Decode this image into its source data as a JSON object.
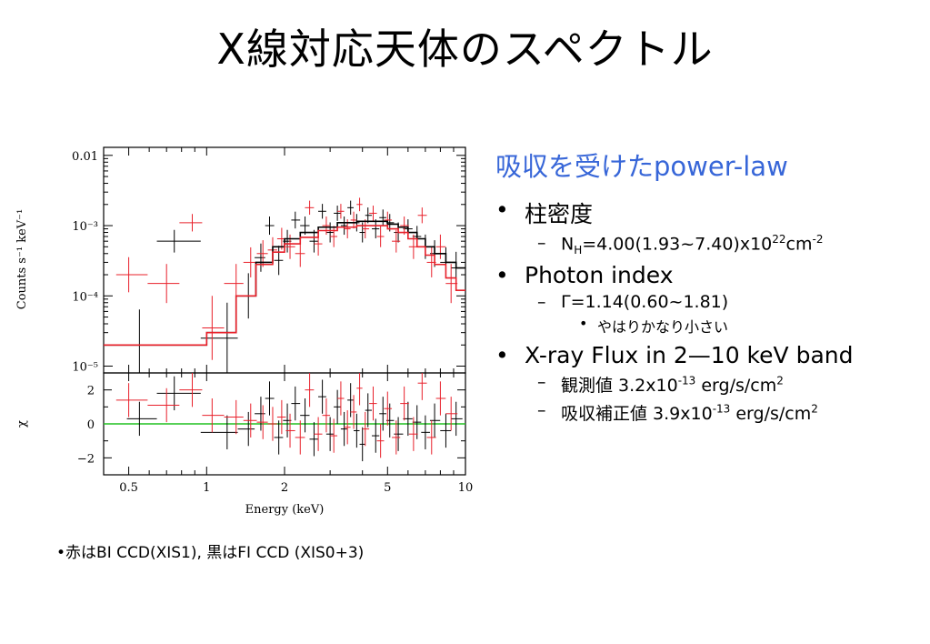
{
  "title": "X線対応天体のスペクトル",
  "right": {
    "heading": "吸収を受けたpower-law",
    "bullet": "•",
    "dash": "–",
    "item1": "柱密度",
    "nh": {
      "pre": "N",
      "sub": "H",
      "mid": "=4.00(1.93~7.40)x10",
      "sup": "22",
      "unit": "cm",
      "unit_sup": "-2"
    },
    "item2": "Photon index",
    "gamma": "Γ=1.14(0.60~1.81)",
    "gamma_note": "やはりかなり小さい",
    "item3": "X-ray Flux in 2—10 keV band",
    "obs": {
      "pre": "観測値 3.2x10",
      "sup": "-13",
      "post": " erg/s/cm",
      "post_sup": "2"
    },
    "corr": {
      "pre": "吸収補正値 3.9x10",
      "sup": "-13",
      "post": " erg/s/cm",
      "post_sup": "2"
    }
  },
  "note": "•赤はBI CCD(XIS1), 黒はFI CCD (XIS0+3)",
  "chart_data": {
    "type": "scatter",
    "xlabel": "Energy (keV)",
    "x_scale": "log",
    "xlim": [
      0.4,
      10
    ],
    "x_ticks": [
      "0.5",
      "1",
      "2",
      "5",
      "10"
    ],
    "colors": {
      "BI": "#e8202a",
      "FI": "#000000",
      "zero_line": "#20c020"
    },
    "panels": [
      {
        "name": "spectrum",
        "ylabel": "Counts s⁻¹ keV⁻¹",
        "y_scale": "log",
        "ylim": [
          8e-06,
          0.013
        ],
        "y_ticks": [
          "0.01",
          "10⁻³",
          "10⁻⁴",
          "10⁻⁵"
        ],
        "series": [
          {
            "key": "FI",
            "points": [
              [
                0.55,
                2e-05
              ],
              [
                0.75,
                0.0006
              ],
              [
                1.2,
                2.5e-05
              ],
              [
                1.45,
                0.0001
              ],
              [
                1.62,
                0.00035
              ],
              [
                1.75,
                0.001
              ],
              [
                1.9,
                0.00032
              ],
              [
                2.05,
                0.0006
              ],
              [
                2.2,
                0.0012
              ],
              [
                2.4,
                0.001
              ],
              [
                2.6,
                0.0006
              ],
              [
                2.8,
                0.0016
              ],
              [
                3.0,
                0.0008
              ],
              [
                3.2,
                0.0015
              ],
              [
                3.4,
                0.001
              ],
              [
                3.6,
                0.0018
              ],
              [
                3.8,
                0.0011
              ],
              [
                4.0,
                0.0008
              ],
              [
                4.2,
                0.0014
              ],
              [
                4.5,
                0.0009
              ],
              [
                4.8,
                0.0013
              ],
              [
                5.1,
                0.0011
              ],
              [
                5.5,
                0.0008
              ],
              [
                6.0,
                0.0009
              ],
              [
                6.5,
                0.0007
              ],
              [
                7.0,
                0.0005
              ],
              [
                7.6,
                0.0004
              ],
              [
                8.4,
                0.0003
              ],
              [
                9.2,
                0.00025
              ]
            ]
          },
          {
            "key": "BI",
            "points": [
              [
                0.5,
                0.0002
              ],
              [
                0.7,
                0.00015
              ],
              [
                0.88,
                0.0011
              ],
              [
                1.05,
                3.5e-05
              ],
              [
                1.3,
                0.00015
              ],
              [
                1.48,
                0.0003
              ],
              [
                1.65,
                0.0004
              ],
              [
                1.8,
                0.00045
              ],
              [
                1.95,
                0.00065
              ],
              [
                2.1,
                0.0005
              ],
              [
                2.3,
                0.0004
              ],
              [
                2.5,
                0.0018
              ],
              [
                2.7,
                0.00055
              ],
              [
                2.9,
                0.001
              ],
              [
                3.1,
                0.0007
              ],
              [
                3.3,
                0.0016
              ],
              [
                3.5,
                0.0009
              ],
              [
                3.7,
                0.0012
              ],
              [
                3.9,
                0.002
              ],
              [
                4.1,
                0.0009
              ],
              [
                4.4,
                0.0015
              ],
              [
                4.7,
                0.0007
              ],
              [
                5.0,
                0.0012
              ],
              [
                5.4,
                0.0006
              ],
              [
                5.8,
                0.001
              ],
              [
                6.3,
                0.0005
              ],
              [
                6.8,
                0.0014
              ],
              [
                7.4,
                0.0003
              ],
              [
                8.0,
                0.0005
              ],
              [
                8.8,
                0.00015
              ]
            ]
          }
        ],
        "models": [
          {
            "key": "FI",
            "steps": [
              [
                0.4,
                2e-05
              ],
              [
                1.0,
                3e-05
              ],
              [
                1.3,
                0.0001
              ],
              [
                1.55,
                0.0003
              ],
              [
                1.8,
                0.0005
              ],
              [
                2.0,
                0.00065
              ],
              [
                2.3,
                0.0008
              ],
              [
                2.7,
                0.00095
              ],
              [
                3.2,
                0.0011
              ],
              [
                3.8,
                0.00115
              ],
              [
                4.5,
                0.00115
              ],
              [
                5.0,
                0.00105
              ],
              [
                5.5,
                0.00095
              ],
              [
                6.0,
                0.0008
              ],
              [
                6.5,
                0.00065
              ],
              [
                7.0,
                0.0005
              ],
              [
                7.6,
                0.0004
              ],
              [
                8.4,
                0.0003
              ],
              [
                9.2,
                0.00025
              ],
              [
                10.0,
                0.00025
              ]
            ]
          },
          {
            "key": "BI",
            "steps": [
              [
                0.4,
                2e-05
              ],
              [
                1.0,
                3e-05
              ],
              [
                1.3,
                0.0001
              ],
              [
                1.55,
                0.00028
              ],
              [
                1.8,
                0.00042
              ],
              [
                2.0,
                0.00055
              ],
              [
                2.3,
                0.00068
              ],
              [
                2.7,
                0.00085
              ],
              [
                3.2,
                0.00095
              ],
              [
                3.8,
                0.001
              ],
              [
                4.5,
                0.001
              ],
              [
                5.0,
                0.0009
              ],
              [
                5.5,
                0.0008
              ],
              [
                6.0,
                0.00065
              ],
              [
                6.5,
                0.0005
              ],
              [
                7.0,
                0.00038
              ],
              [
                7.6,
                0.00028
              ],
              [
                8.4,
                0.00018
              ],
              [
                9.2,
                0.00012
              ],
              [
                10.0,
                0.00012
              ]
            ]
          }
        ]
      },
      {
        "name": "residuals",
        "ylabel": "χ",
        "y_scale": "linear",
        "ylim": [
          -3,
          3
        ],
        "y_ticks": [
          2,
          0,
          -2
        ],
        "series": [
          {
            "key": "FI",
            "points": [
              [
                0.55,
                0.3
              ],
              [
                0.75,
                1.8
              ],
              [
                1.2,
                -0.5
              ],
              [
                1.45,
                -0.3
              ],
              [
                1.62,
                0.6
              ],
              [
                1.75,
                1.5
              ],
              [
                1.9,
                -0.8
              ],
              [
                2.05,
                0.2
              ],
              [
                2.2,
                1.2
              ],
              [
                2.4,
                0.5
              ],
              [
                2.6,
                -0.9
              ],
              [
                2.8,
                1.6
              ],
              [
                3.0,
                -0.6
              ],
              [
                3.2,
                1.0
              ],
              [
                3.4,
                -0.3
              ],
              [
                3.6,
                1.4
              ],
              [
                3.8,
                -0.4
              ],
              [
                4.0,
                -1.2
              ],
              [
                4.2,
                0.8
              ],
              [
                4.5,
                -0.7
              ],
              [
                4.8,
                0.6
              ],
              [
                5.1,
                0.2
              ],
              [
                5.5,
                -0.6
              ],
              [
                6.0,
                0.3
              ],
              [
                6.5,
                0.1
              ],
              [
                7.0,
                -0.5
              ],
              [
                7.6,
                0.2
              ],
              [
                8.4,
                -0.4
              ],
              [
                9.2,
                0.3
              ]
            ]
          },
          {
            "key": "BI",
            "points": [
              [
                0.5,
                1.4
              ],
              [
                0.7,
                1.1
              ],
              [
                0.88,
                2.0
              ],
              [
                1.05,
                0.5
              ],
              [
                1.3,
                0.4
              ],
              [
                1.48,
                0.2
              ],
              [
                1.65,
                0.1
              ],
              [
                1.8,
                0.0
              ],
              [
                1.95,
                0.4
              ],
              [
                2.1,
                -0.4
              ],
              [
                2.3,
                -0.8
              ],
              [
                2.5,
                2.0
              ],
              [
                2.7,
                -0.6
              ],
              [
                2.9,
                0.5
              ],
              [
                3.1,
                -0.7
              ],
              [
                3.3,
                1.5
              ],
              [
                3.5,
                -0.2
              ],
              [
                3.7,
                0.7
              ],
              [
                3.9,
                2.1
              ],
              [
                4.1,
                -0.3
              ],
              [
                4.4,
                1.2
              ],
              [
                4.7,
                -1.0
              ],
              [
                5.0,
                0.9
              ],
              [
                5.4,
                -0.8
              ],
              [
                5.8,
                1.2
              ],
              [
                6.3,
                -0.6
              ],
              [
                6.8,
                2.4
              ],
              [
                7.4,
                -0.8
              ],
              [
                8.0,
                1.5
              ],
              [
                8.8,
                0.6
              ]
            ]
          }
        ]
      }
    ]
  }
}
